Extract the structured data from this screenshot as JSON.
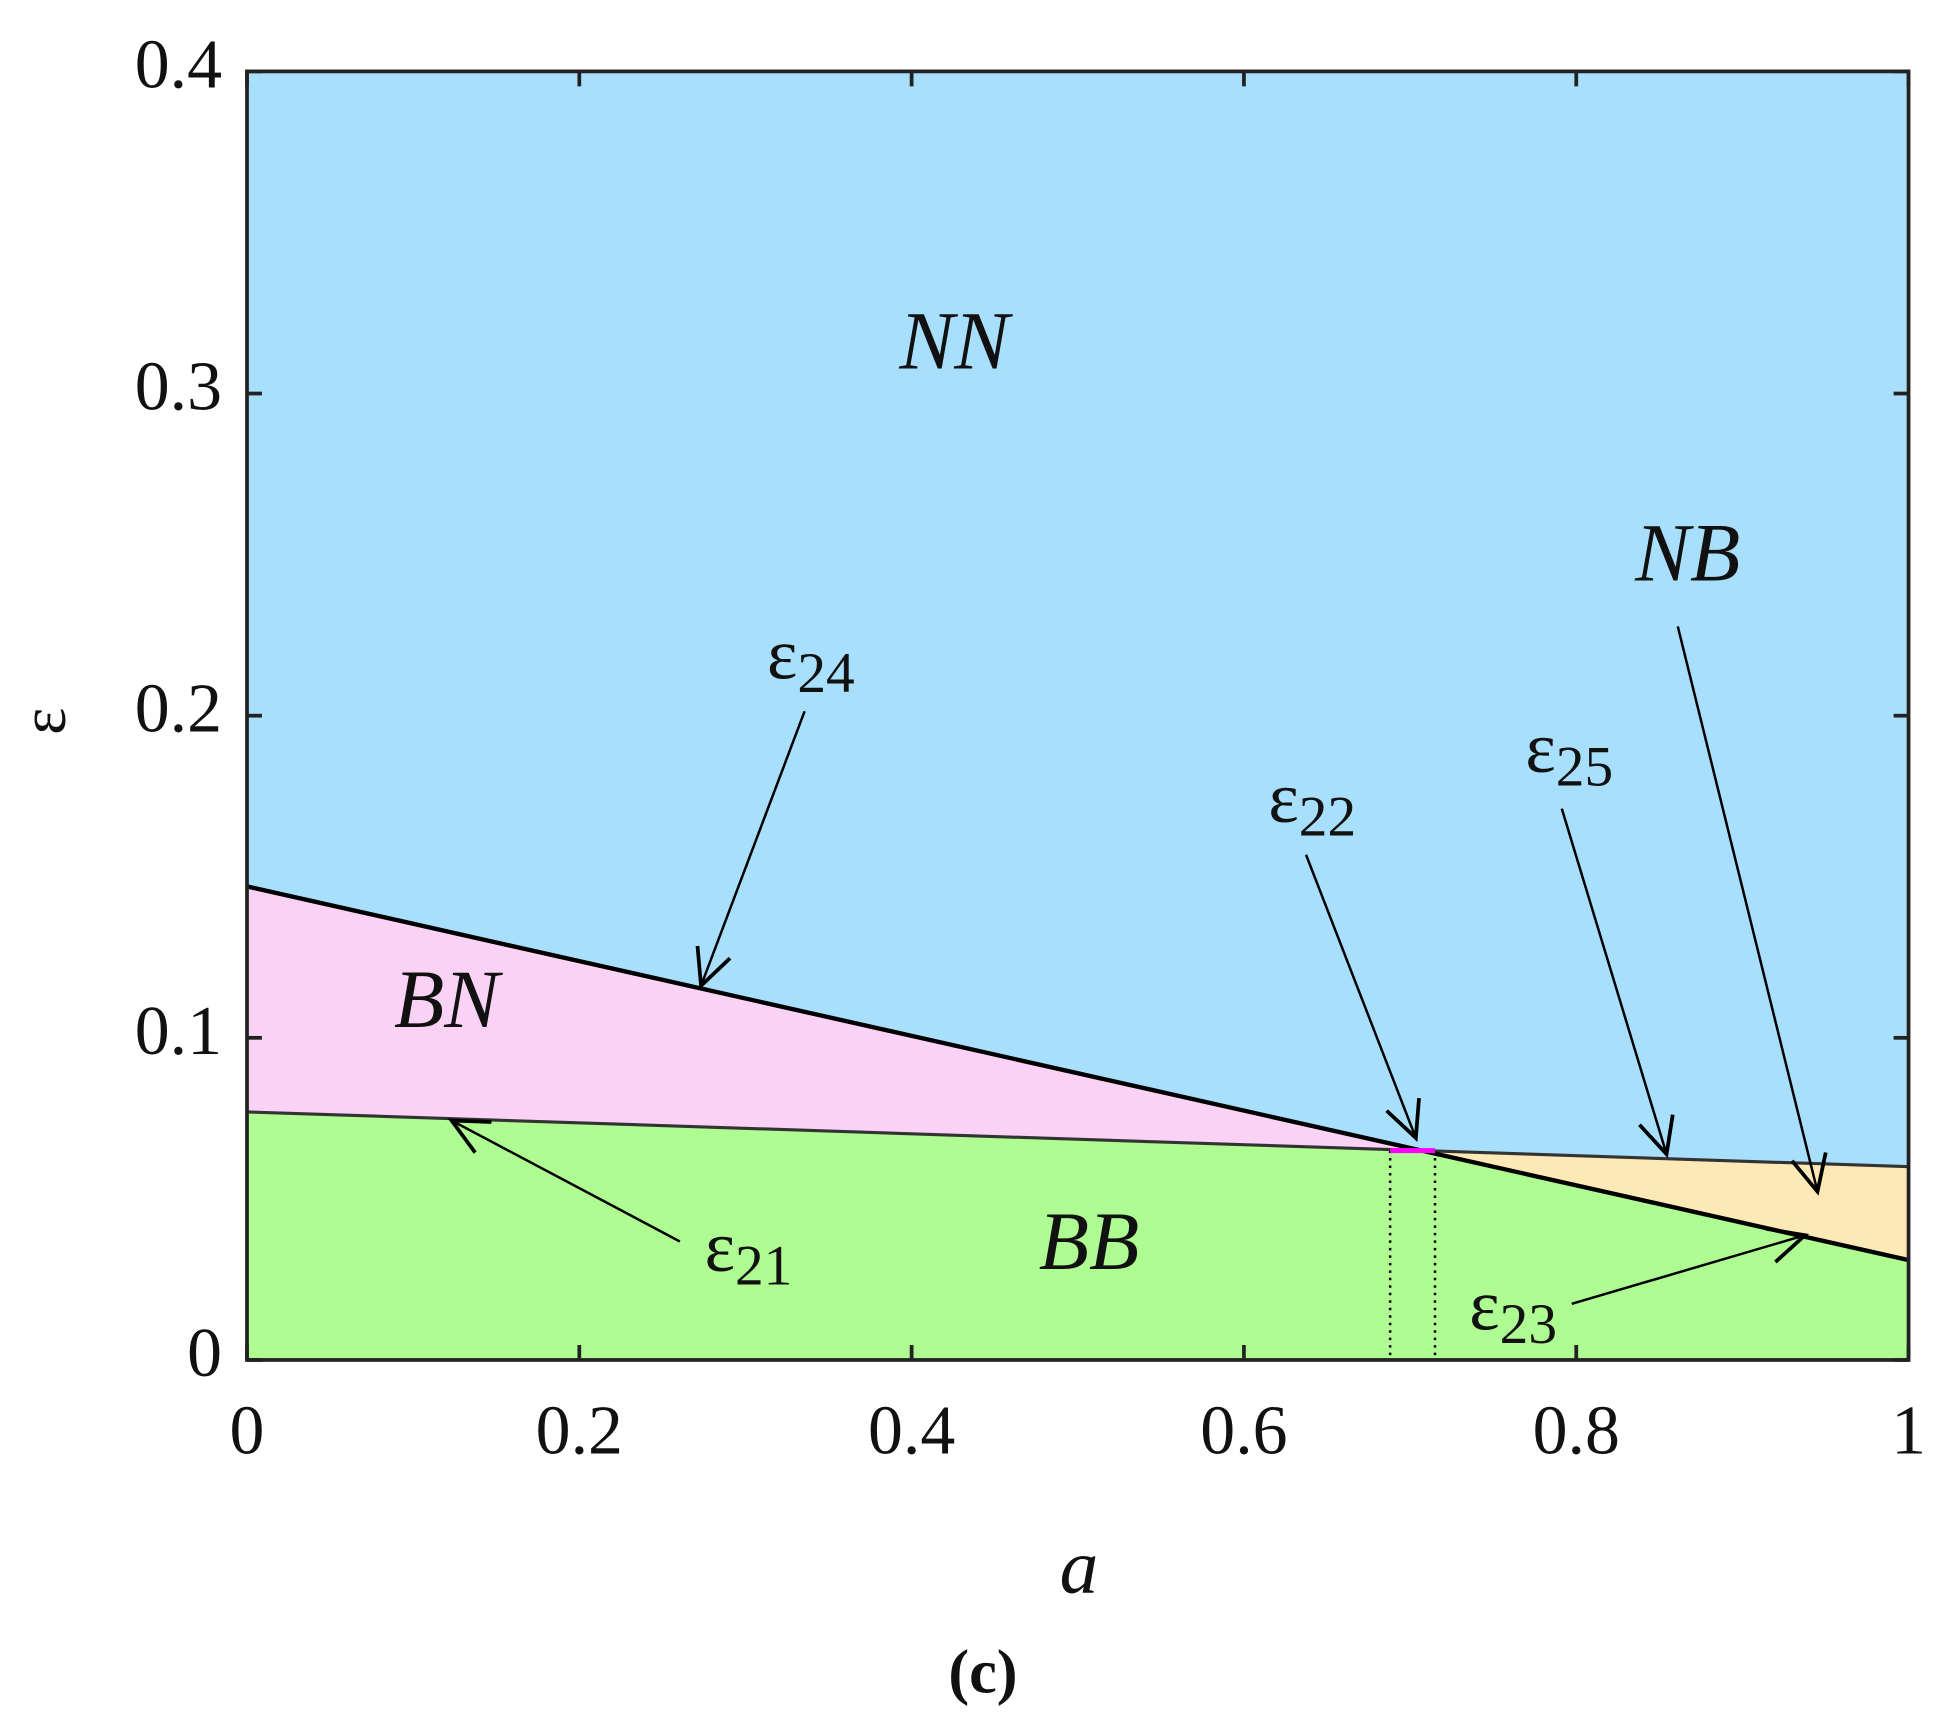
{
  "chart_data": {
    "type": "region",
    "xlabel": "a",
    "ylabel": "ε",
    "caption": "(c)",
    "xlim": [
      0,
      1
    ],
    "ylim": [
      0,
      0.4
    ],
    "xticks": [
      0,
      0.2,
      0.4,
      0.6,
      0.8,
      1
    ],
    "yticks": [
      0,
      0.1,
      0.2,
      0.3,
      0.4
    ],
    "lines": [
      {
        "x": [
          0,
          0.707
        ],
        "values": [
          0.147,
          0.065
        ],
        "color": "#000000"
      },
      {
        "x": [
          0,
          0.707
        ],
        "values": [
          0.077,
          0.065
        ],
        "color": "#333333"
      },
      {
        "x": [
          0.707,
          1
        ],
        "values": [
          0.065,
          0.06
        ],
        "color": "#333333"
      },
      {
        "x": [
          0.707,
          1
        ],
        "values": [
          0.065,
          0.031
        ],
        "color": "#000000"
      },
      {
        "x": [
          0.688,
          0.715
        ],
        "values": [
          0.065,
          0.065
        ],
        "color": "#ff00ff"
      }
    ],
    "vlines": [
      0.688,
      0.715
    ],
    "regions": [
      {
        "label": "NN",
        "color": "#a8dffc"
      },
      {
        "label": "BN",
        "color": "#fad2f5"
      },
      {
        "label": "BB",
        "color": "#aefc92"
      },
      {
        "label": "NB",
        "color": "#fde9b6"
      }
    ],
    "annotations": [
      {
        "symbol": "ε",
        "subscript": "24"
      },
      {
        "symbol": "ε",
        "subscript": "22"
      },
      {
        "symbol": "ε",
        "subscript": "25"
      },
      {
        "symbol": "ε",
        "subscript": "21"
      },
      {
        "symbol": "ε",
        "subscript": "23"
      }
    ]
  }
}
